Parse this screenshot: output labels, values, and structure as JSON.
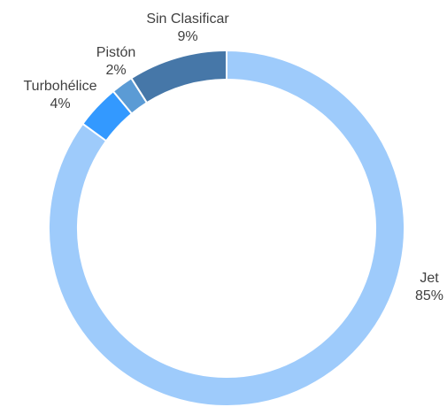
{
  "chart_data": {
    "type": "donut",
    "categories": [
      "Jet",
      "Turbohélice",
      "Pistón",
      "Sin Clasificar"
    ],
    "values": [
      85,
      4,
      2,
      9
    ],
    "value_labels": [
      "85%",
      "4%",
      "2%",
      "9%"
    ],
    "colors": [
      "#9ecbfb",
      "#3399ff",
      "#5b9bd5",
      "#4677a8"
    ]
  }
}
